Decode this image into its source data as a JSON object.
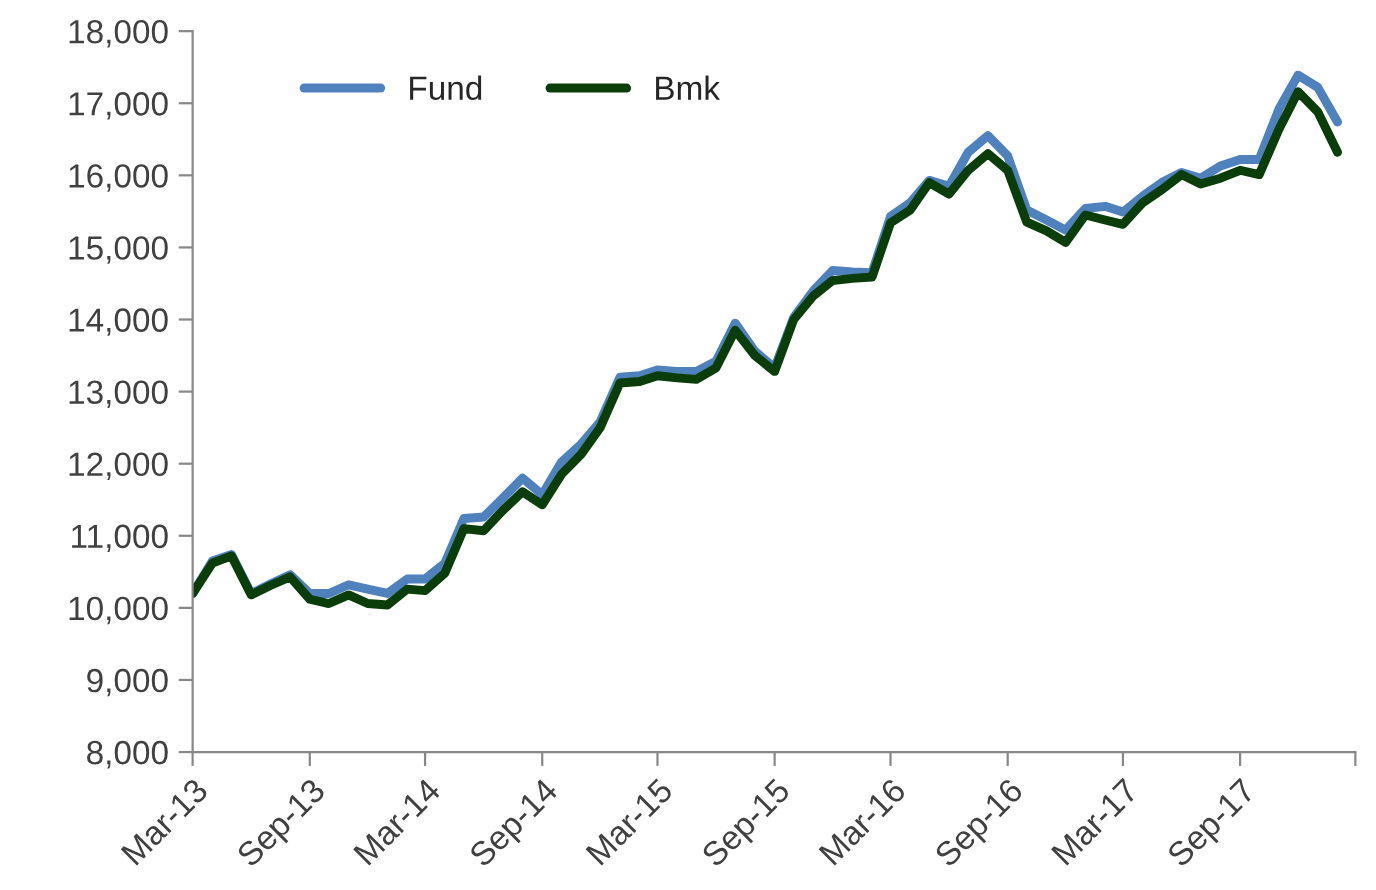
{
  "chart_data": {
    "type": "line",
    "x": [
      "2013-03",
      "2013-04",
      "2013-05",
      "2013-06",
      "2013-07",
      "2013-08",
      "2013-09",
      "2013-10",
      "2013-11",
      "2013-12",
      "2014-01",
      "2014-02",
      "2014-03",
      "2014-04",
      "2014-05",
      "2014-06",
      "2014-07",
      "2014-08",
      "2014-09",
      "2014-10",
      "2014-11",
      "2014-12",
      "2015-01",
      "2015-02",
      "2015-03",
      "2015-04",
      "2015-05",
      "2015-06",
      "2015-07",
      "2015-08",
      "2015-09",
      "2015-10",
      "2015-11",
      "2015-12",
      "2016-01",
      "2016-02",
      "2016-03",
      "2016-04",
      "2016-05",
      "2016-06",
      "2016-07",
      "2016-08",
      "2016-09",
      "2016-10",
      "2016-11",
      "2016-12",
      "2017-01",
      "2017-02",
      "2017-03",
      "2017-04",
      "2017-05",
      "2017-06",
      "2017-07",
      "2017-08",
      "2017-09",
      "2017-10",
      "2017-11",
      "2017-12",
      "2018-01",
      "2018-02"
    ],
    "series": [
      {
        "name": "Fund",
        "color": "#4f81bd",
        "values": [
          10200,
          10650,
          10740,
          10200,
          10330,
          10460,
          10200,
          10200,
          10320,
          10260,
          10200,
          10400,
          10400,
          10620,
          11240,
          11260,
          11520,
          11800,
          11570,
          12020,
          12270,
          12580,
          13200,
          13220,
          13300,
          13280,
          13280,
          13420,
          13950,
          13560,
          13330,
          14030,
          14400,
          14680,
          14660,
          14650,
          15430,
          15620,
          15930,
          15850,
          16320,
          16550,
          16270,
          15520,
          15380,
          15240,
          15540,
          15570,
          15490,
          15710,
          15900,
          16040,
          15960,
          16130,
          16220,
          16220,
          16920,
          17390,
          17220,
          16740
        ]
      },
      {
        "name": "Bmk",
        "color": "#0b3d0b",
        "values": [
          10200,
          10620,
          10720,
          10180,
          10310,
          10430,
          10120,
          10060,
          10180,
          10060,
          10040,
          10260,
          10240,
          10480,
          11100,
          11070,
          11350,
          11610,
          11430,
          11850,
          12130,
          12500,
          13120,
          13140,
          13220,
          13190,
          13170,
          13330,
          13850,
          13500,
          13280,
          14000,
          14330,
          14540,
          14570,
          14590,
          15340,
          15520,
          15900,
          15740,
          16070,
          16300,
          16070,
          15350,
          15230,
          15070,
          15450,
          15380,
          15320,
          15620,
          15800,
          16010,
          15880,
          15960,
          16070,
          16010,
          16640,
          17160,
          16880,
          16320
        ]
      }
    ],
    "xlim": [
      "2013-03",
      "2018-03"
    ],
    "xticks": [
      {
        "value": "2013-03",
        "label": "Mar-13"
      },
      {
        "value": "2013-09",
        "label": "Sep-13"
      },
      {
        "value": "2014-03",
        "label": "Mar-14"
      },
      {
        "value": "2014-09",
        "label": "Sep-14"
      },
      {
        "value": "2015-03",
        "label": "Mar-15"
      },
      {
        "value": "2015-09",
        "label": "Sep-15"
      },
      {
        "value": "2016-03",
        "label": "Mar-16"
      },
      {
        "value": "2016-09",
        "label": "Sep-16"
      },
      {
        "value": "2017-03",
        "label": "Mar-17"
      },
      {
        "value": "2017-09",
        "label": "Sep-17"
      },
      {
        "value": "2018-03",
        "label": null
      }
    ],
    "ylim": [
      8000,
      18000
    ],
    "yticks": [
      {
        "value": 8000,
        "label": "8,000"
      },
      {
        "value": 9000,
        "label": "9,000"
      },
      {
        "value": 10000,
        "label": "10,000"
      },
      {
        "value": 11000,
        "label": "11,000"
      },
      {
        "value": 12000,
        "label": "12,000"
      },
      {
        "value": 13000,
        "label": "13,000"
      },
      {
        "value": 14000,
        "label": "14,000"
      },
      {
        "value": 15000,
        "label": "15,000"
      },
      {
        "value": 16000,
        "label": "16,000"
      },
      {
        "value": 17000,
        "label": "17,000"
      },
      {
        "value": 18000,
        "label": "18,000"
      }
    ],
    "legend": "top left",
    "grid": false,
    "line_style": "solid",
    "marker": "none"
  }
}
